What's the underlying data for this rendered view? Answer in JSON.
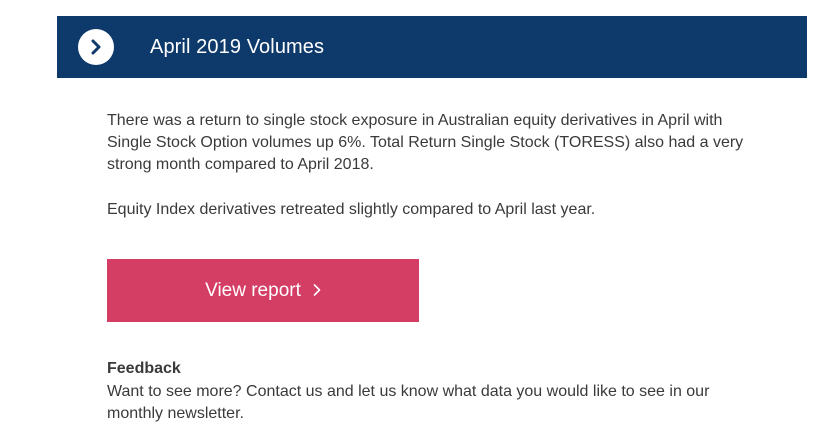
{
  "header": {
    "icon": "chevron-right-circle-icon",
    "title": "April 2019 Volumes",
    "background_color": "#0e3a6b"
  },
  "content": {
    "paragraph_1": "There was a return to single stock exposure in Australian equity derivatives in April with Single Stock Option volumes up 6%. Total Return Single Stock (TORESS) also had a very strong month compared to April 2018.",
    "paragraph_2": "Equity Index derivatives retreated slightly compared to April last year."
  },
  "cta": {
    "label": "View report",
    "icon": "chevron-right-icon",
    "background_color": "#d43d64"
  },
  "feedback": {
    "heading": "Feedback",
    "text": "Want to see more? Contact us and let us know what data you would like to see in our monthly newsletter."
  }
}
